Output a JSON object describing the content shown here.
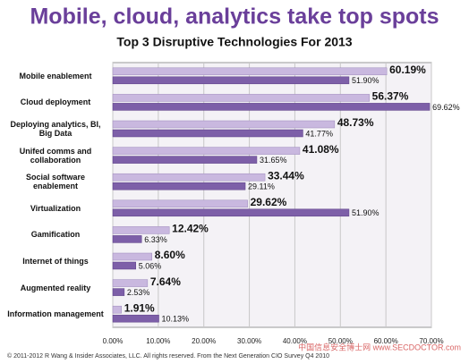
{
  "chart_data": {
    "type": "bar",
    "orientation": "horizontal",
    "title": "Mobile, cloud, analytics take top spots",
    "subtitle": "Top 3 Disruptive Technologies For 2013",
    "footer": "© 2011-2012 R Wang & Insider Associates, LLC. All rights reserved.   From the Next Generation CIO Survey Q4 2010",
    "watermark": "中国信息安全博士网 www.SECDOCTOR.com",
    "categories": [
      "Mobile enablement",
      "Cloud deployment",
      "Deploying analytics, BI, Big Data",
      "Unifed comms and collaboration",
      "Social software enablement",
      "Virtualization",
      "Gamification",
      "Internet of things",
      "Augmented reality",
      "Information management"
    ],
    "series": [
      {
        "color": "#c9b8df",
        "values": [
          60.19,
          56.37,
          48.73,
          41.08,
          33.44,
          29.62,
          12.42,
          8.6,
          7.64,
          1.91
        ],
        "value_labels": [
          "60.19%",
          "56.37%",
          "48.73%",
          "41.08%",
          "33.44%",
          "29.62%",
          "12.42%",
          "8.60%",
          "7.64%",
          "1.91%"
        ]
      },
      {
        "color": "#7d5fa8",
        "values": [
          51.9,
          69.62,
          41.77,
          31.65,
          29.11,
          51.9,
          6.33,
          5.06,
          2.53,
          10.13
        ],
        "value_labels": [
          "51.90%",
          "69.62%",
          "41.77%",
          "31.65%",
          "29.11%",
          "51.90%",
          "6.33%",
          "5.06%",
          "2.53%",
          "10.13%"
        ]
      }
    ],
    "xlim": [
      0,
      70
    ],
    "xticks": [
      {
        "value": 0,
        "label": "0.00%"
      },
      {
        "value": 10,
        "label": "10.00%"
      },
      {
        "value": 20,
        "label": "20.00%"
      },
      {
        "value": 30,
        "label": "30.00%"
      },
      {
        "value": 40,
        "label": "40.00%"
      },
      {
        "value": 50,
        "label": "50.00%"
      },
      {
        "value": 60,
        "label": "60.00%"
      },
      {
        "value": 70,
        "label": "70.00%"
      }
    ],
    "grid": true
  }
}
